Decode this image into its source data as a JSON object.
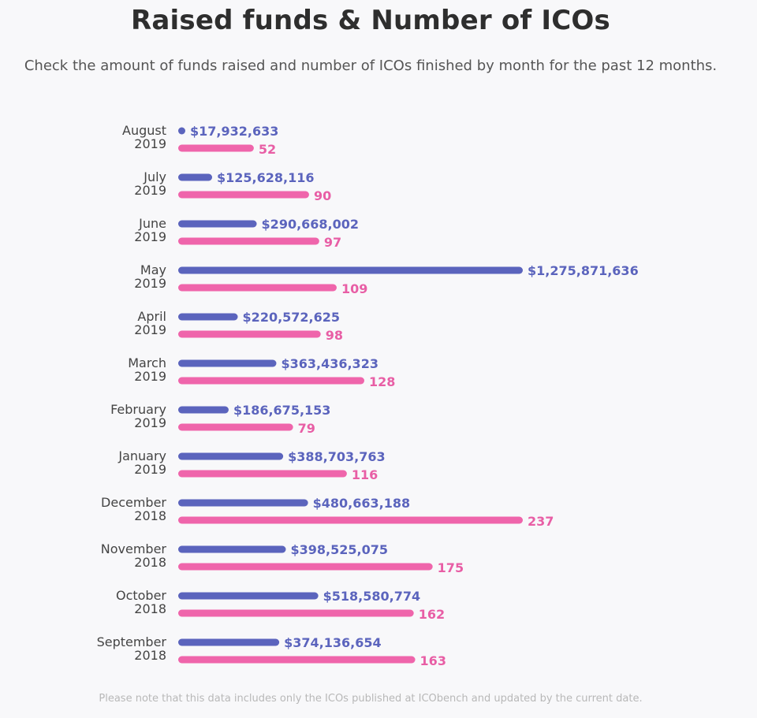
{
  "header": {
    "title": "Raised funds & Number of ICOs",
    "subtitle": "Check the amount of funds raised and number of ICOs finished by month for the past 12 months."
  },
  "footnote": "Please note that this data includes only the ICOs published at ICObench and updated by the current date.",
  "colors": {
    "funds": "#5b64bd",
    "icos": "#ef65ab",
    "funds_text": "#5b64bd",
    "icos_text": "#e85ea5"
  },
  "chart_data": {
    "type": "bar",
    "orientation": "horizontal",
    "categories": [
      {
        "month": "August",
        "year": "2019"
      },
      {
        "month": "July",
        "year": "2019"
      },
      {
        "month": "June",
        "year": "2019"
      },
      {
        "month": "May",
        "year": "2019"
      },
      {
        "month": "April",
        "year": "2019"
      },
      {
        "month": "March",
        "year": "2019"
      },
      {
        "month": "February",
        "year": "2019"
      },
      {
        "month": "January",
        "year": "2019"
      },
      {
        "month": "December",
        "year": "2018"
      },
      {
        "month": "November",
        "year": "2018"
      },
      {
        "month": "October",
        "year": "2018"
      },
      {
        "month": "September",
        "year": "2018"
      }
    ],
    "series": [
      {
        "values": [
          17932633,
          125628116,
          290668002,
          1275871636,
          220572625,
          363436323,
          186675153,
          388703763,
          480663188,
          398525075,
          518580774,
          374136654
        ],
        "labels": [
          "$17,932,633",
          "$125,628,116",
          "$290,668,002",
          "$1,275,871,636",
          "$220,572,625",
          "$363,436,323",
          "$186,675,153",
          "$388,703,763",
          "$480,663,188",
          "$398,525,075",
          "$518,580,774",
          "$374,136,654"
        ]
      },
      {
        "values": [
          52,
          90,
          97,
          109,
          98,
          128,
          79,
          116,
          237,
          175,
          162,
          163
        ],
        "labels": [
          "52",
          "90",
          "97",
          "109",
          "98",
          "128",
          "79",
          "116",
          "237",
          "175",
          "162",
          "163"
        ]
      }
    ],
    "grid": false,
    "legend": "none"
  }
}
